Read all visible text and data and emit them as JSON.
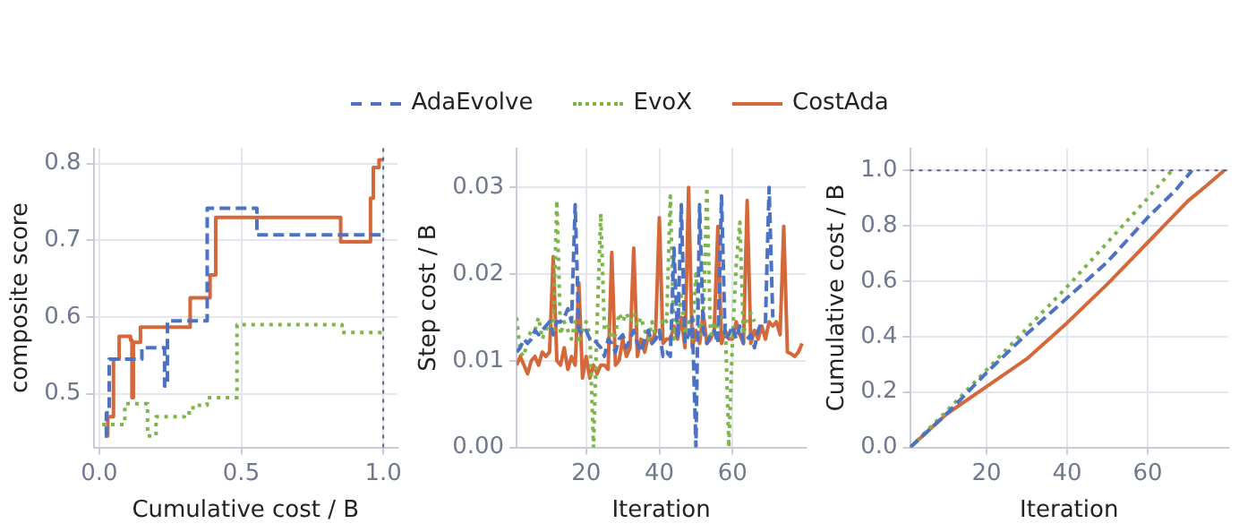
{
  "chart_data": [
    {
      "type": "step",
      "xlabel": "Cumulative cost / B",
      "ylabel": "composite score",
      "xlim": [
        -0.02,
        1.05
      ],
      "ylim": [
        0.43,
        0.82
      ],
      "xticks": [
        {
          "value": 0,
          "label": "0.0"
        },
        {
          "value": 0.5,
          "label": "0.5"
        },
        {
          "value": 1,
          "label": "1.0"
        }
      ],
      "yticks": [
        0.5,
        0.6,
        0.7,
        0.8
      ],
      "grid": true,
      "legend": "top",
      "ref_lines": [
        {
          "axis": "x",
          "value": 1.0,
          "color": "#5a6482",
          "line_style": "dotted"
        }
      ],
      "series": [
        {
          "name": "AdaEvolve",
          "color": "#4c72c4",
          "line_style": "dashed",
          "x": [
            0.02,
            0.025,
            0.035,
            0.15,
            0.23,
            0.24,
            0.38,
            0.555,
            1.0
          ],
          "values": [
            0.445,
            0.475,
            0.545,
            0.56,
            0.51,
            0.595,
            0.742,
            0.707,
            0.707
          ]
        },
        {
          "name": "EvoX",
          "color": "#7ab648",
          "line_style": "dotted",
          "x": [
            0.01,
            0.09,
            0.17,
            0.2,
            0.3,
            0.33,
            0.38,
            0.485,
            0.855,
            1.0
          ],
          "values": [
            0.46,
            0.487,
            0.445,
            0.47,
            0.475,
            0.485,
            0.495,
            0.59,
            0.58,
            0.58
          ]
        },
        {
          "name": "CostAda",
          "color": "#d4683a",
          "line_style": "solid",
          "x": [
            0.02,
            0.03,
            0.05,
            0.07,
            0.11,
            0.115,
            0.12,
            0.145,
            0.32,
            0.39,
            0.41,
            0.85,
            0.955,
            0.965,
            0.985,
            1.0
          ],
          "values": [
            0.445,
            0.47,
            0.545,
            0.575,
            0.57,
            0.495,
            0.567,
            0.587,
            0.625,
            0.655,
            0.73,
            0.698,
            0.755,
            0.795,
            0.805,
            0.805
          ]
        }
      ]
    },
    {
      "type": "line",
      "xlabel": "Iteration",
      "ylabel": "Step cost / B",
      "xlim": [
        1,
        80
      ],
      "ylim": [
        0,
        0.0345
      ],
      "xticks": [
        20,
        40,
        60
      ],
      "yticks": [
        {
          "value": 0,
          "label": "0.00"
        },
        {
          "value": 0.01,
          "label": "0.01"
        },
        {
          "value": 0.02,
          "label": "0.02"
        },
        {
          "value": 0.03,
          "label": "0.03"
        }
      ],
      "grid": true,
      "x": [
        1,
        2,
        3,
        4,
        5,
        6,
        7,
        8,
        9,
        10,
        11,
        12,
        13,
        14,
        15,
        16,
        17,
        18,
        19,
        20,
        21,
        22,
        23,
        24,
        25,
        26,
        27,
        28,
        29,
        30,
        31,
        32,
        33,
        34,
        35,
        36,
        37,
        38,
        39,
        40,
        41,
        42,
        43,
        44,
        45,
        46,
        47,
        48,
        49,
        50,
        51,
        52,
        53,
        54,
        55,
        56,
        57,
        58,
        59,
        60,
        61,
        62,
        63,
        64,
        65,
        66,
        67,
        68,
        69,
        70,
        71,
        72,
        73,
        74,
        75,
        76,
        77,
        78,
        79
      ],
      "series": [
        {
          "color": "#4c72c4",
          "line_style": "dashed",
          "values": [
            0.011,
            0.0115,
            0.0125,
            0.012,
            0.0125,
            0.0135,
            0.013,
            0.0135,
            0.014,
            0.0145,
            0.013,
            0.0145,
            0.0145,
            0.015,
            0.016,
            0.0145,
            0.028,
            0.0135,
            0.013,
            0.0135,
            0.0125,
            0.0125,
            0.012,
            0.0115,
            0.0105,
            0.0125,
            0.012,
            0.011,
            0.0125,
            0.013,
            0.0115,
            0.0125,
            0.0135,
            0.012,
            0.011,
            0.0125,
            0.0135,
            0.012,
            0.0125,
            0.0135,
            0.0105,
            0.011,
            0.0105,
            0.023,
            0.0125,
            0.028,
            0.012,
            0.013,
            0.015,
            0.0,
            0.028,
            0.0135,
            0.012,
            0.013,
            0.0135,
            0.012,
            0.029,
            0.0125,
            0.013,
            0.014,
            0.0125,
            0.014,
            0.012,
            0.0125,
            0.013,
            0.0115,
            0.0135,
            0.0145,
            0.0145,
            0.03,
            0.015,
            null,
            null,
            null,
            null,
            null,
            null,
            null,
            null
          ]
        },
        {
          "color": "#7ab648",
          "line_style": "dotted",
          "values": [
            0.015,
            0.011,
            0.0105,
            0.0125,
            0.0135,
            0.0135,
            0.015,
            0.0125,
            0.0135,
            0.0145,
            0.0135,
            0.0285,
            0.013,
            0.0145,
            0.0135,
            0.0125,
            0.0145,
            0.012,
            0.0135,
            0.0145,
            0.013,
            0.0,
            0.0145,
            0.027,
            0.0135,
            0.014,
            0.0125,
            0.013,
            0.0155,
            0.0145,
            0.0155,
            0.0145,
            0.0155,
            0.014,
            0.015,
            0.0135,
            0.0125,
            0.0145,
            0.0125,
            0.013,
            0.015,
            0.0145,
            0.029,
            0.0125,
            0.0145,
            0.0175,
            0.013,
            0.0145,
            0.0125,
            0.02,
            0.013,
            0.0145,
            0.03,
            0.0125,
            0.0145,
            0.0135,
            0.015,
            0.0145,
            0.0,
            0.0125,
            0.021,
            0.026,
            0.013,
            0.015,
            0.0155,
            0.0145,
            null,
            null,
            null,
            null,
            null,
            null,
            null,
            null,
            null,
            null,
            null,
            null,
            null
          ]
        },
        {
          "color": "#d4683a",
          "line_style": "solid",
          "values": [
            0.0095,
            0.0105,
            0.0095,
            0.0085,
            0.01,
            0.0105,
            0.0095,
            0.011,
            0.0105,
            0.011,
            0.022,
            0.01,
            0.0095,
            0.0115,
            0.009,
            0.0105,
            0.0095,
            0.019,
            0.008,
            0.0105,
            0.008,
            0.0095,
            0.0085,
            0.0095,
            0.0095,
            0.009,
            0.0225,
            0.0095,
            0.01,
            0.0125,
            0.0105,
            0.0115,
            0.023,
            0.0105,
            0.0125,
            0.011,
            0.013,
            0.012,
            0.0135,
            0.0265,
            0.012,
            0.0125,
            0.0125,
            0.014,
            0.0125,
            0.015,
            0.0115,
            0.03,
            0.0115,
            0.0135,
            0.012,
            0.0155,
            0.012,
            0.0125,
            0.0135,
            0.0255,
            0.012,
            0.0135,
            0.0125,
            0.0125,
            0.0145,
            0.013,
            0.012,
            0.0285,
            0.012,
            0.0135,
            0.0125,
            0.014,
            0.0125,
            0.0145,
            0.014,
            0.0145,
            0.013,
            0.0255,
            0.011,
            0.0108,
            0.0105,
            0.011,
            0.012
          ]
        }
      ]
    },
    {
      "type": "line",
      "xlabel": "Iteration",
      "ylabel": "Cumulative cost / B",
      "xlim": [
        1,
        80
      ],
      "ylim": [
        0,
        1.08
      ],
      "xticks": [
        20,
        40,
        60
      ],
      "yticks": [
        {
          "value": 0,
          "label": "0.0"
        },
        {
          "value": 0.2,
          "label": "0.2"
        },
        {
          "value": 0.4,
          "label": "0.4"
        },
        {
          "value": 0.6,
          "label": "0.6"
        },
        {
          "value": 0.8,
          "label": "0.8"
        },
        {
          "value": 1,
          "label": "1.0"
        }
      ],
      "grid": true,
      "ref_lines": [
        {
          "axis": "y",
          "value": 1.0,
          "color": "#5a6482",
          "line_style": "dotted"
        }
      ],
      "series": [
        {
          "color": "#4c72c4",
          "line_style": "dashed",
          "x": [
            1,
            10,
            20,
            30,
            40,
            50,
            60,
            67,
            71
          ],
          "values": [
            0,
            0.12,
            0.27,
            0.41,
            0.54,
            0.67,
            0.83,
            0.93,
            1.0
          ]
        },
        {
          "color": "#7ab648",
          "line_style": "dotted",
          "x": [
            1,
            10,
            20,
            30,
            40,
            50,
            60,
            66
          ],
          "values": [
            0,
            0.13,
            0.28,
            0.43,
            0.58,
            0.74,
            0.9,
            1.0
          ]
        },
        {
          "color": "#d4683a",
          "line_style": "solid",
          "x": [
            1,
            10,
            20,
            30,
            40,
            50,
            60,
            70,
            75,
            79
          ],
          "values": [
            0,
            0.12,
            0.22,
            0.32,
            0.45,
            0.59,
            0.74,
            0.89,
            0.95,
            1.0
          ]
        }
      ]
    }
  ]
}
